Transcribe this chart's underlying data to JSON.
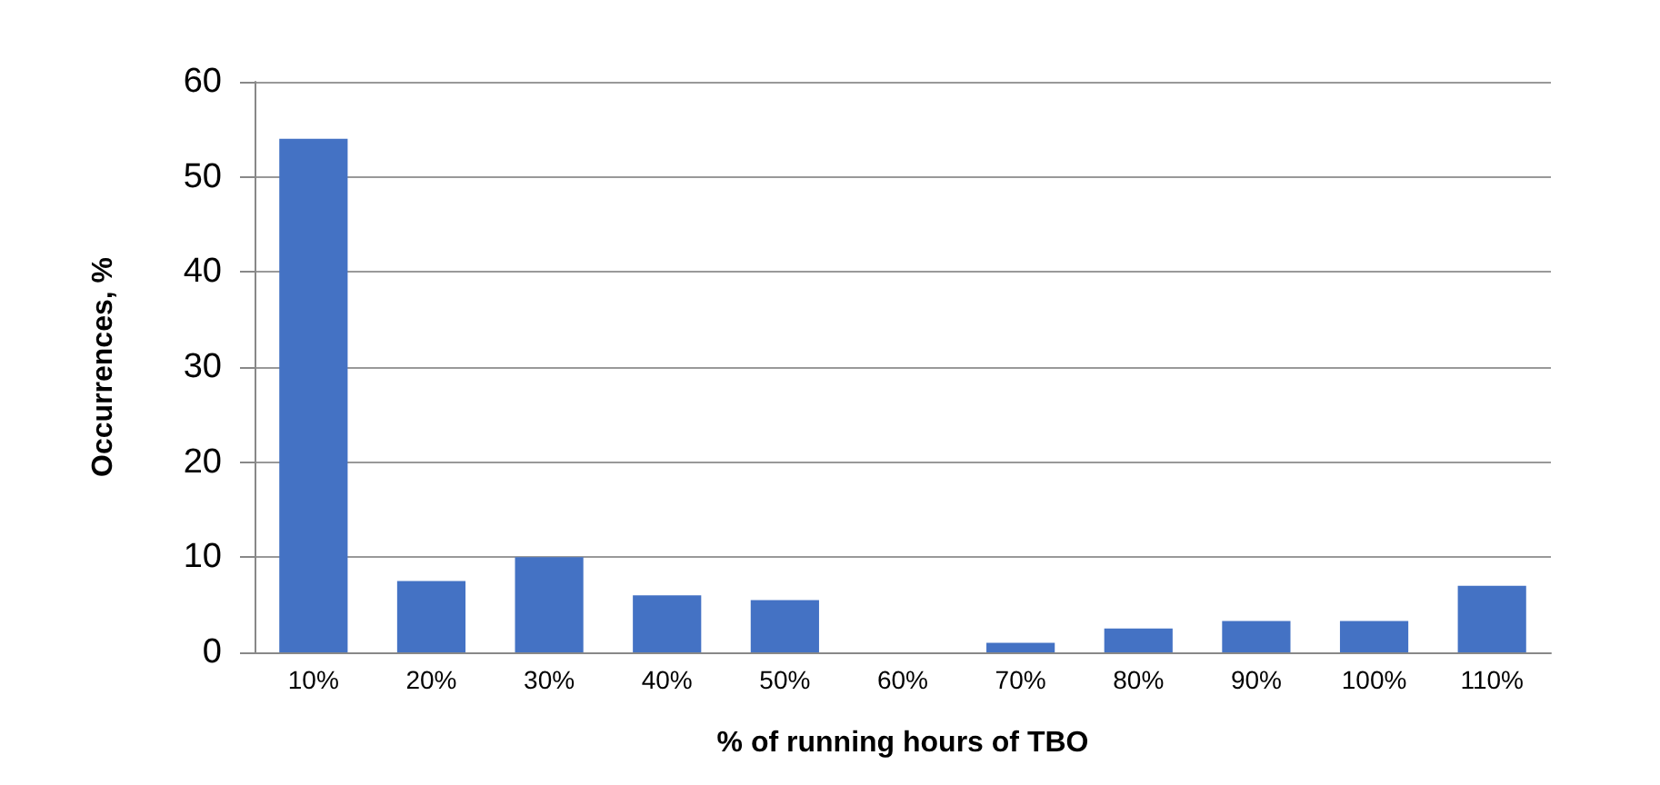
{
  "chart_data": {
    "type": "bar",
    "xlabel": "% of running hours of TBO",
    "ylabel": "Occurrences, %",
    "categories": [
      "10%",
      "20%",
      "30%",
      "40%",
      "50%",
      "60%",
      "70%",
      "80%",
      "90%",
      "100%",
      "110%"
    ],
    "values": [
      54,
      7.5,
      10,
      6,
      5.5,
      0,
      1,
      2.5,
      3.3,
      3.3,
      7
    ],
    "color": "#4472c4",
    "ylim": [
      0,
      60
    ],
    "yticks": [
      0,
      10,
      20,
      30,
      40,
      50,
      60
    ],
    "grid": "y"
  }
}
